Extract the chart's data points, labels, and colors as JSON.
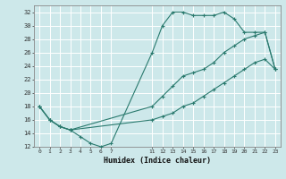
{
  "xlabel": "Humidex (Indice chaleur)",
  "bg_color": "#cde8ea",
  "grid_color": "#ffffff",
  "line_color": "#2a7a6e",
  "ylim": [
    12,
    33
  ],
  "xlim": [
    -0.5,
    23.5
  ],
  "yticks": [
    12,
    14,
    16,
    18,
    20,
    22,
    24,
    26,
    28,
    30,
    32
  ],
  "xticks": [
    0,
    1,
    2,
    3,
    4,
    5,
    6,
    7,
    11,
    12,
    13,
    14,
    15,
    16,
    17,
    18,
    19,
    20,
    21,
    22,
    23
  ],
  "line1_x": [
    0,
    1,
    2,
    3,
    4,
    5,
    6,
    7,
    11,
    12,
    13,
    14,
    15,
    16,
    17,
    18,
    19,
    20,
    21,
    22,
    23
  ],
  "line1_y": [
    18,
    16,
    15,
    14.5,
    13.5,
    12.5,
    12,
    12.5,
    26,
    30,
    32,
    32,
    31.5,
    31.5,
    31.5,
    32,
    31,
    29,
    29,
    29,
    23.5
  ],
  "line2_x": [
    0,
    1,
    2,
    3,
    11,
    12,
    13,
    14,
    15,
    16,
    17,
    18,
    19,
    20,
    21,
    22,
    23
  ],
  "line2_y": [
    18,
    16,
    15,
    14.5,
    18,
    19.5,
    21,
    22.5,
    23,
    23.5,
    24.5,
    26,
    27,
    28,
    28.5,
    29,
    23.5
  ],
  "line3_x": [
    0,
    1,
    2,
    3,
    11,
    12,
    13,
    14,
    15,
    16,
    17,
    18,
    19,
    20,
    21,
    22,
    23
  ],
  "line3_y": [
    18,
    16,
    15,
    14.5,
    16,
    16.5,
    17,
    18,
    18.5,
    19.5,
    20.5,
    21.5,
    22.5,
    23.5,
    24.5,
    25,
    23.5
  ]
}
